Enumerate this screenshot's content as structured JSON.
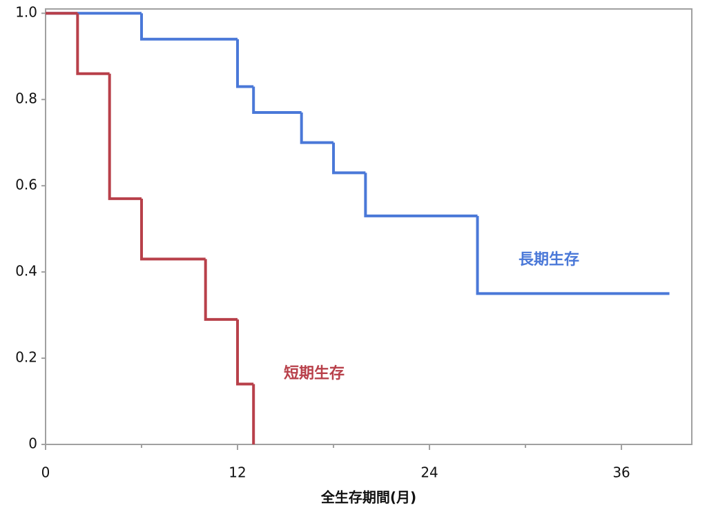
{
  "chart_data": {
    "type": "step",
    "xlabel": "全生存期間(月)",
    "xlim": [
      0,
      40.4
    ],
    "xticks": [
      0,
      12,
      24,
      36
    ],
    "xminorticks": [
      6,
      18,
      30
    ],
    "ylim": [
      0,
      1.01
    ],
    "yticks": [
      0,
      0.2,
      0.4,
      0.6,
      0.8,
      {
        "value": 1,
        "label": "1.0"
      }
    ],
    "series": [
      {
        "name": "長期生存",
        "color": "#4a78d8",
        "x": [
          0,
          6,
          12,
          13,
          16,
          18,
          20,
          27,
          39
        ],
        "values": [
          1,
          0.94,
          0.83,
          0.77,
          0.7,
          0.63,
          0.53,
          0.35,
          0.35
        ]
      },
      {
        "name": "短期生存",
        "color": "#b8404a",
        "x": [
          0,
          2,
          4,
          6,
          10,
          12,
          13
        ],
        "values": [
          1,
          0.86,
          0.57,
          0.43,
          0.29,
          0.14,
          0
        ]
      }
    ]
  }
}
